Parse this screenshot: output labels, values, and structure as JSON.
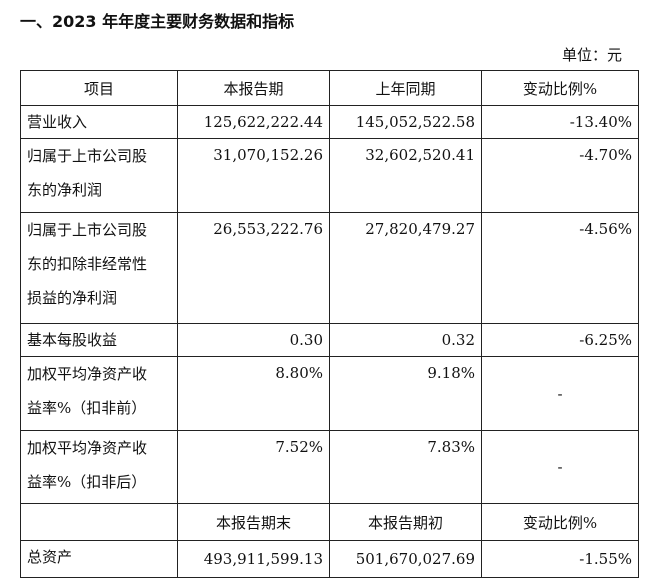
{
  "section_title": "一、2023 年年度主要财务数据和指标",
  "unit_label": "单位：元",
  "header": [
    "项目",
    "本报告期",
    "上年同期",
    "变动比例%"
  ],
  "rows": [
    {
      "item_lines": [
        "营业收入"
      ],
      "current": "125,622,222.44",
      "previous": "145,052,522.58",
      "change": "-13.40%"
    },
    {
      "item_lines": [
        "归属于上市公司股",
        "东的净利润"
      ],
      "current": "31,070,152.26",
      "previous": "32,602,520.41",
      "change": "-4.70%"
    },
    {
      "item_lines": [
        "归属于上市公司股",
        "东的扣除非经常性",
        "损益的净利润"
      ],
      "current": "26,553,222.76",
      "previous": "27,820,479.27",
      "change": "-4.56%"
    },
    {
      "item_lines": [
        "基本每股收益"
      ],
      "current": "0.30",
      "previous": "0.32",
      "change": "-6.25%"
    },
    {
      "item_lines": [
        "加权平均净资产收",
        "益率%（扣非前）"
      ],
      "current": "8.80%",
      "previous": "9.18%",
      "change": "-"
    },
    {
      "item_lines": [
        "加权平均净资产收",
        "益率%（扣非后）"
      ],
      "current": "7.52%",
      "previous": "7.83%",
      "change": "-"
    }
  ],
  "header2": [
    "",
    "本报告期末",
    "本报告期初",
    "变动比例%"
  ],
  "asset_row": {
    "item": "总资产",
    "end": "493,911,599.13",
    "begin": "501,670,027.69",
    "change": "-1.55%"
  }
}
